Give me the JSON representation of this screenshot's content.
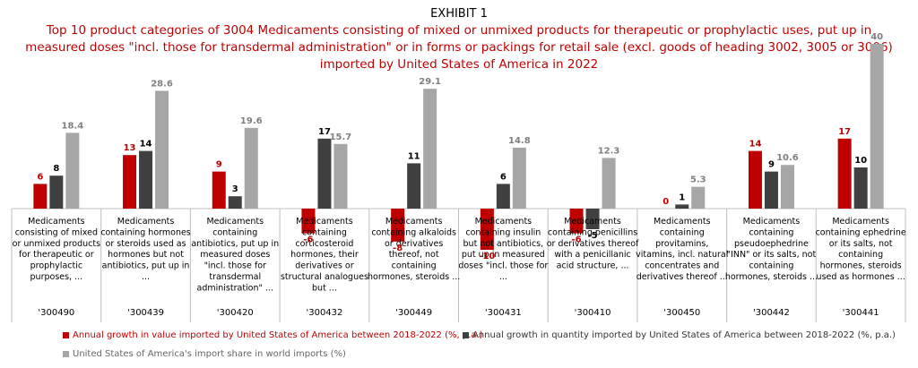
{
  "exhibit_label": "EXHIBIT 1",
  "title": "Top 10 product categories of 3004 Medicaments consisting of mixed or unmixed products for therapeutic or prophylactic uses, put up in measured doses \"incl. those for transdermal administration\" or in forms or packings for retail sale (excl. goods of heading 3002, 3005 or 3006) imported by United States of America in 2022",
  "colors": {
    "value_growth": "#c00000",
    "quantity_growth": "#404040",
    "world_share": "#a6a6a6"
  },
  "chart_data": {
    "type": "bar",
    "categories": [
      {
        "code": "'300490",
        "lines": [
          "Medicaments",
          "consisting of mixed",
          "or unmixed products",
          "for therapeutic or",
          "prophylactic",
          "purposes, ..."
        ]
      },
      {
        "code": "'300439",
        "lines": [
          "Medicaments",
          "containing hormones",
          "or steroids used as",
          "hormones but not",
          "antibiotics, put up in",
          "..."
        ]
      },
      {
        "code": "'300420",
        "lines": [
          "Medicaments",
          "containing",
          "antibiotics, put up in",
          "measured doses",
          "\"incl. those for",
          "transdermal",
          "administration\" ..."
        ]
      },
      {
        "code": "'300432",
        "lines": [
          "Medicaments",
          "containing",
          "corticosteroid",
          "hormones, their",
          "derivatives or",
          "structural analogues",
          "but ..."
        ]
      },
      {
        "code": "'300449",
        "lines": [
          "Medicaments",
          "containing alkaloids",
          "or derivatives",
          "thereof, not",
          "containing",
          "hormones, steroids ..."
        ]
      },
      {
        "code": "'300431",
        "lines": [
          "Medicaments",
          "containing insulin",
          "but not antibiotics,",
          "put up in measured",
          "doses \"incl. those for",
          "..."
        ]
      },
      {
        "code": "'300410",
        "lines": [
          "Medicaments",
          "containing penicillins",
          "or derivatives thereof",
          "with a penicillanic",
          "acid structure, ..."
        ]
      },
      {
        "code": "'300450",
        "lines": [
          "Medicaments",
          "containing",
          "provitamins,",
          "vitamins, incl. natural",
          "concentrates and",
          "derivatives thereof ..."
        ]
      },
      {
        "code": "'300442",
        "lines": [
          "Medicaments",
          "containing",
          "pseudoephedrine",
          "\"INN\" or its salts, not",
          "containing",
          "hormones, steroids ..."
        ]
      },
      {
        "code": "'300441",
        "lines": [
          "Medicaments",
          "containing ephedrine",
          "or its salts, not",
          "containing",
          "hormones, steroids",
          "used as hormones ..."
        ]
      }
    ],
    "series": [
      {
        "name": "Annual growth in value imported by United States of America between 2018-2022 (%, p.a.)",
        "values": [
          6,
          13,
          9,
          -6,
          -8,
          -10,
          -6,
          0,
          14,
          17
        ],
        "labels": [
          "6",
          "13",
          "9",
          "-6",
          "-8",
          "-10",
          "-6",
          "0",
          "14",
          "17"
        ]
      },
      {
        "name": "Annual growth in quantity imported by United States of America between 2018-2022 (%, p.a.)",
        "values": [
          8,
          14,
          3,
          17,
          11,
          6,
          -5,
          1,
          9,
          10
        ],
        "labels": [
          "8",
          "14",
          "3",
          "17",
          "11",
          "6",
          "-5",
          "1",
          "9",
          "10"
        ]
      },
      {
        "name": "United States of America's import share in world imports (%)",
        "values": [
          18.4,
          28.6,
          19.6,
          15.7,
          29.1,
          14.8,
          12.3,
          5.3,
          10.6,
          40
        ],
        "labels": [
          "18.4",
          "28.6",
          "19.6",
          "15.7",
          "29.1",
          "14.8",
          "12.3",
          "5.3",
          "10.6",
          "40"
        ]
      }
    ],
    "ylim": [
      -10,
      40
    ],
    "legend_position": "bottom",
    "grid": false
  }
}
